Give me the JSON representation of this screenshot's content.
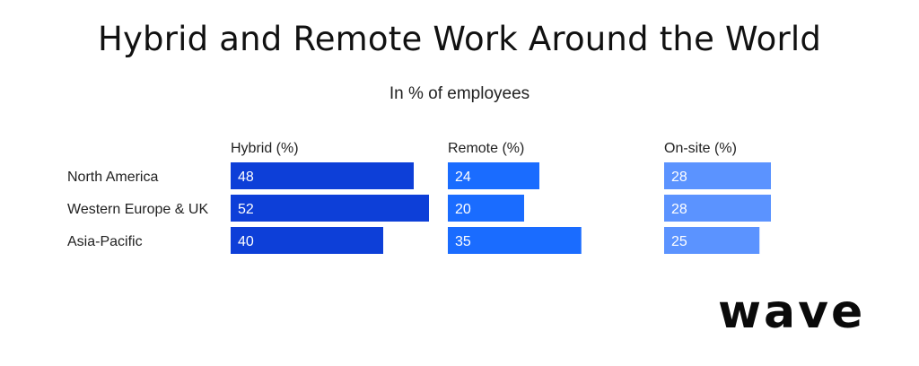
{
  "chart_data": {
    "type": "bar",
    "title": "Hybrid and Remote Work Around the World",
    "subtitle": "In % of employees",
    "categories": [
      "North America",
      "Western Europe & UK",
      "Asia-Pacific"
    ],
    "series": [
      {
        "name": "Hybrid (%)",
        "color": "#0d3fd8",
        "values": [
          48,
          52,
          40
        ]
      },
      {
        "name": "Remote (%)",
        "color": "#1a6cff",
        "values": [
          24,
          20,
          35
        ]
      },
      {
        "name": "On-site (%)",
        "color": "#5b93ff",
        "values": [
          28,
          28,
          25
        ]
      }
    ],
    "grid": false,
    "orientation": "horizontal",
    "layout": "small-multiples"
  },
  "brand": {
    "logo_text": "wave"
  }
}
